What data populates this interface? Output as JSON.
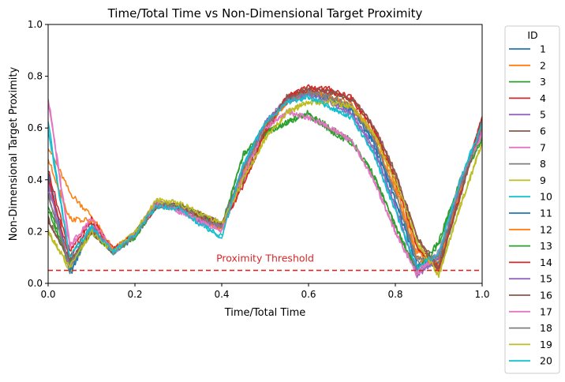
{
  "chart_data": {
    "type": "line",
    "title": "Time/Total Time vs Non-Dimensional Target Proximity",
    "xlabel": "Time/Total Time",
    "ylabel": "Non-Dimensional Target Proximity",
    "xlim": [
      0,
      1
    ],
    "ylim": [
      0,
      1
    ],
    "xticks": [
      "0.0",
      "0.2",
      "0.4",
      "0.6",
      "0.8",
      "1.0"
    ],
    "yticks": [
      "0.0",
      "0.2",
      "0.4",
      "0.6",
      "0.8",
      "1.0"
    ],
    "grid": false,
    "legend": {
      "title": "ID",
      "placement": "outside-right"
    },
    "threshold": {
      "label": "Proximity Threshold",
      "value": 0.05,
      "color": "#d62728",
      "style": "dashed"
    },
    "x": [
      0.0,
      0.05,
      0.1,
      0.15,
      0.2,
      0.25,
      0.3,
      0.35,
      0.4,
      0.45,
      0.5,
      0.55,
      0.6,
      0.65,
      0.7,
      0.75,
      0.8,
      0.85,
      0.9,
      0.95,
      1.0
    ],
    "series": [
      {
        "name": "1",
        "color": "#1f77b4",
        "values": [
          0.43,
          0.03,
          0.22,
          0.12,
          0.18,
          0.3,
          0.3,
          0.26,
          0.22,
          0.45,
          0.62,
          0.7,
          0.74,
          0.72,
          0.68,
          0.55,
          0.32,
          0.1,
          0.06,
          0.38,
          0.62
        ]
      },
      {
        "name": "2",
        "color": "#ff7f0e",
        "values": [
          0.53,
          0.35,
          0.26,
          0.13,
          0.19,
          0.31,
          0.29,
          0.25,
          0.21,
          0.42,
          0.6,
          0.7,
          0.74,
          0.72,
          0.69,
          0.58,
          0.38,
          0.12,
          0.08,
          0.36,
          0.6
        ]
      },
      {
        "name": "3",
        "color": "#2ca02c",
        "values": [
          0.3,
          0.07,
          0.2,
          0.12,
          0.18,
          0.3,
          0.3,
          0.26,
          0.22,
          0.5,
          0.58,
          0.62,
          0.66,
          0.6,
          0.55,
          0.42,
          0.22,
          0.04,
          0.15,
          0.4,
          0.55
        ]
      },
      {
        "name": "4",
        "color": "#d62728",
        "values": [
          0.44,
          0.12,
          0.25,
          0.13,
          0.19,
          0.3,
          0.3,
          0.26,
          0.22,
          0.38,
          0.58,
          0.72,
          0.76,
          0.75,
          0.72,
          0.6,
          0.4,
          0.15,
          0.05,
          0.35,
          0.64
        ]
      },
      {
        "name": "5",
        "color": "#9467bd",
        "values": [
          0.4,
          0.05,
          0.22,
          0.12,
          0.19,
          0.31,
          0.29,
          0.24,
          0.22,
          0.45,
          0.62,
          0.71,
          0.73,
          0.7,
          0.66,
          0.52,
          0.3,
          0.03,
          0.1,
          0.38,
          0.6
        ]
      },
      {
        "name": "6",
        "color": "#8c564b",
        "values": [
          0.25,
          0.08,
          0.2,
          0.12,
          0.19,
          0.3,
          0.3,
          0.27,
          0.23,
          0.4,
          0.6,
          0.72,
          0.75,
          0.74,
          0.71,
          0.6,
          0.42,
          0.18,
          0.05,
          0.34,
          0.63
        ]
      },
      {
        "name": "7",
        "color": "#e377c2",
        "values": [
          0.72,
          0.15,
          0.25,
          0.12,
          0.19,
          0.31,
          0.28,
          0.24,
          0.2,
          0.42,
          0.6,
          0.66,
          0.64,
          0.6,
          0.55,
          0.4,
          0.2,
          0.03,
          0.12,
          0.4,
          0.58
        ]
      },
      {
        "name": "8",
        "color": "#7f7f7f",
        "values": [
          0.35,
          0.06,
          0.21,
          0.12,
          0.19,
          0.3,
          0.3,
          0.26,
          0.22,
          0.44,
          0.61,
          0.7,
          0.74,
          0.72,
          0.68,
          0.56,
          0.35,
          0.08,
          0.1,
          0.37,
          0.61
        ]
      },
      {
        "name": "9",
        "color": "#bcbd22",
        "values": [
          0.2,
          0.05,
          0.2,
          0.12,
          0.2,
          0.32,
          0.31,
          0.27,
          0.23,
          0.4,
          0.56,
          0.66,
          0.7,
          0.7,
          0.68,
          0.58,
          0.4,
          0.15,
          0.03,
          0.3,
          0.54
        ]
      },
      {
        "name": "10",
        "color": "#17becf",
        "values": [
          0.62,
          0.1,
          0.22,
          0.12,
          0.19,
          0.3,
          0.29,
          0.23,
          0.18,
          0.46,
          0.62,
          0.7,
          0.72,
          0.68,
          0.64,
          0.5,
          0.28,
          0.05,
          0.12,
          0.4,
          0.62
        ]
      },
      {
        "name": "11",
        "color": "#1f77b4",
        "values": [
          0.42,
          0.05,
          0.21,
          0.12,
          0.19,
          0.3,
          0.3,
          0.26,
          0.22,
          0.44,
          0.61,
          0.7,
          0.74,
          0.71,
          0.67,
          0.54,
          0.32,
          0.07,
          0.08,
          0.38,
          0.62
        ]
      },
      {
        "name": "12",
        "color": "#ff7f0e",
        "values": [
          0.48,
          0.25,
          0.24,
          0.13,
          0.19,
          0.31,
          0.29,
          0.25,
          0.21,
          0.43,
          0.6,
          0.7,
          0.74,
          0.72,
          0.68,
          0.57,
          0.36,
          0.1,
          0.07,
          0.36,
          0.6
        ]
      },
      {
        "name": "13",
        "color": "#2ca02c",
        "values": [
          0.28,
          0.08,
          0.2,
          0.12,
          0.18,
          0.3,
          0.3,
          0.26,
          0.22,
          0.5,
          0.58,
          0.62,
          0.65,
          0.59,
          0.54,
          0.42,
          0.22,
          0.05,
          0.16,
          0.4,
          0.56
        ]
      },
      {
        "name": "14",
        "color": "#d62728",
        "values": [
          0.4,
          0.1,
          0.24,
          0.13,
          0.19,
          0.3,
          0.3,
          0.26,
          0.22,
          0.38,
          0.58,
          0.72,
          0.75,
          0.74,
          0.71,
          0.6,
          0.4,
          0.14,
          0.06,
          0.35,
          0.64
        ]
      },
      {
        "name": "15",
        "color": "#9467bd",
        "values": [
          0.38,
          0.06,
          0.22,
          0.12,
          0.19,
          0.31,
          0.29,
          0.24,
          0.22,
          0.45,
          0.62,
          0.71,
          0.73,
          0.7,
          0.65,
          0.52,
          0.3,
          0.04,
          0.1,
          0.38,
          0.6
        ]
      },
      {
        "name": "16",
        "color": "#8c564b",
        "values": [
          0.24,
          0.09,
          0.2,
          0.12,
          0.19,
          0.3,
          0.3,
          0.27,
          0.23,
          0.4,
          0.6,
          0.72,
          0.75,
          0.74,
          0.71,
          0.61,
          0.43,
          0.18,
          0.06,
          0.34,
          0.63
        ]
      },
      {
        "name": "17",
        "color": "#e377c2",
        "values": [
          0.7,
          0.14,
          0.25,
          0.12,
          0.19,
          0.31,
          0.28,
          0.24,
          0.2,
          0.42,
          0.6,
          0.66,
          0.64,
          0.6,
          0.55,
          0.4,
          0.2,
          0.04,
          0.12,
          0.4,
          0.58
        ]
      },
      {
        "name": "18",
        "color": "#7f7f7f",
        "values": [
          0.34,
          0.07,
          0.21,
          0.12,
          0.19,
          0.3,
          0.3,
          0.26,
          0.22,
          0.44,
          0.61,
          0.7,
          0.74,
          0.72,
          0.68,
          0.56,
          0.35,
          0.09,
          0.1,
          0.37,
          0.61
        ]
      },
      {
        "name": "19",
        "color": "#bcbd22",
        "values": [
          0.2,
          0.06,
          0.2,
          0.12,
          0.2,
          0.32,
          0.31,
          0.27,
          0.23,
          0.4,
          0.56,
          0.66,
          0.7,
          0.7,
          0.68,
          0.58,
          0.4,
          0.16,
          0.03,
          0.3,
          0.54
        ]
      },
      {
        "name": "20",
        "color": "#17becf",
        "values": [
          0.6,
          0.1,
          0.22,
          0.12,
          0.19,
          0.3,
          0.29,
          0.23,
          0.18,
          0.46,
          0.62,
          0.7,
          0.72,
          0.68,
          0.64,
          0.5,
          0.28,
          0.06,
          0.12,
          0.4,
          0.62
        ]
      }
    ]
  }
}
